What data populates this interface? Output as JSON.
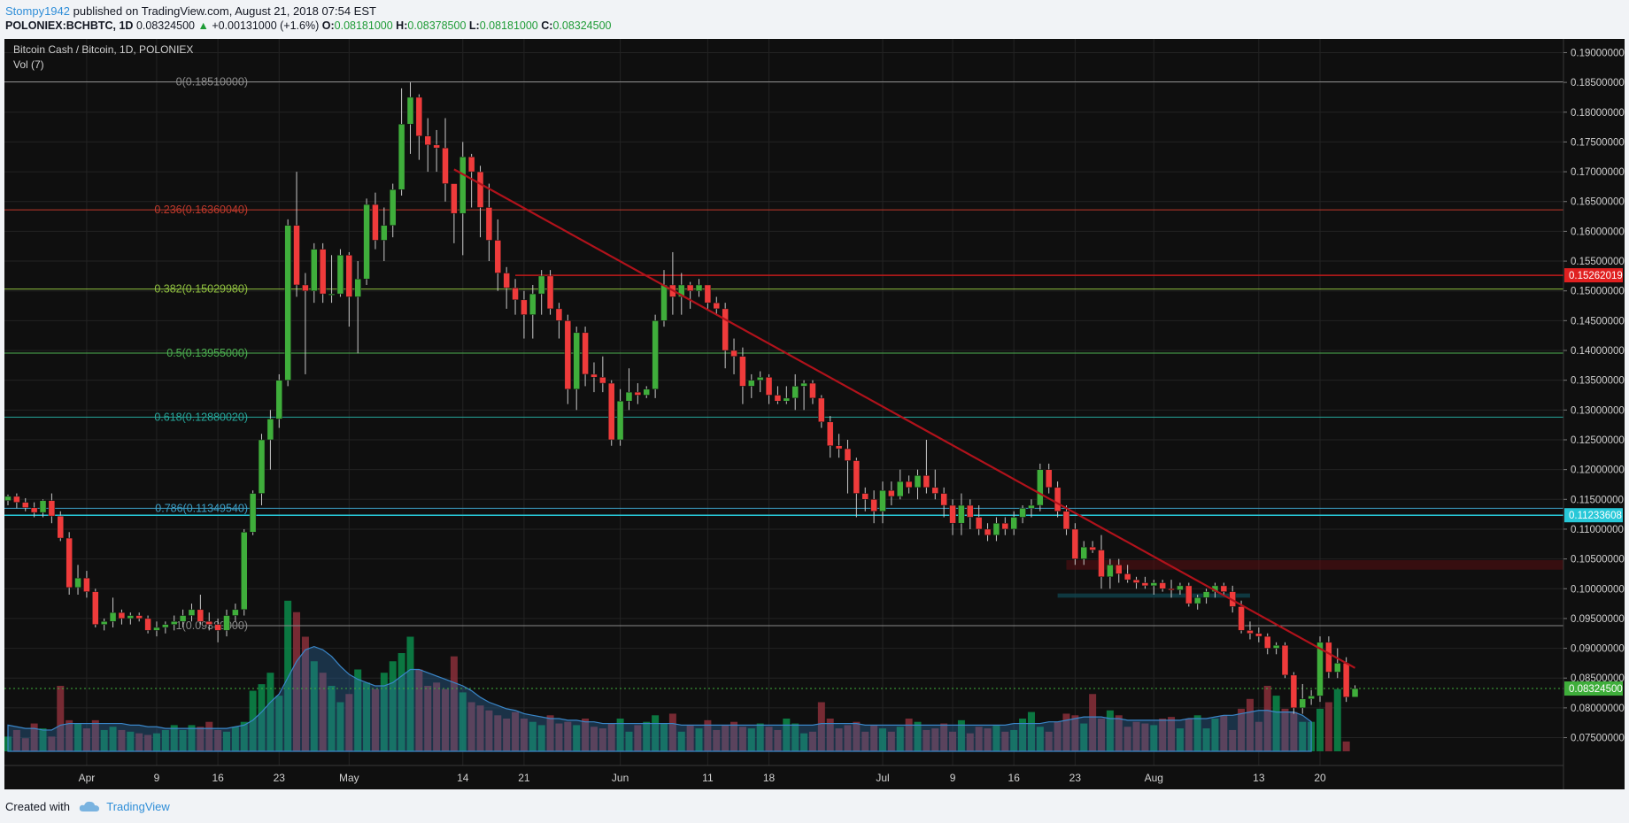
{
  "header": {
    "author": "Stompy1942",
    "published": " published on TradingView.com, August 21, 2018 07:54 EST",
    "symbol": "POLONIEX:BCHBTC, 1D",
    "last": "0.08324500",
    "change": "+0.00131000 (+1.6%)",
    "o_label": "O:",
    "o": "0.08181000",
    "h_label": "H:",
    "h": "0.08378500",
    "l_label": "L:",
    "l": "0.08181000",
    "c_label": "C:",
    "c": "0.08324500"
  },
  "legend": {
    "title": "Bitcoin Cash / Bitcoin, 1D, POLONIEX",
    "indicator": "Vol (7)"
  },
  "footer": {
    "created": "Created with",
    "brand": "TradingView"
  },
  "colors": {
    "up": "#3fae3b",
    "down": "#ef3b3b",
    "trend": "#b0121b",
    "background": "#0f0f0f",
    "volume_ma": "#2e6da4"
  },
  "chart_data": {
    "type": "candlestick",
    "title": "Bitcoin Cash / Bitcoin, 1D, POLONIEX",
    "ylim": [
      0.073,
      0.192
    ],
    "y_ticks": [
      "0.19000000",
      "0.18500000",
      "0.18000000",
      "0.17500000",
      "0.17000000",
      "0.16500000",
      "0.16000000",
      "0.15500000",
      "0.15000000",
      "0.14500000",
      "0.14000000",
      "0.13500000",
      "0.13000000",
      "0.12500000",
      "0.12000000",
      "0.11500000",
      "0.11000000",
      "0.10500000",
      "0.10000000",
      "0.09500000",
      "0.09000000",
      "0.08500000",
      "0.08000000",
      "0.07500000"
    ],
    "x_ticks": [
      {
        "label": "Apr",
        "day": 9
      },
      {
        "label": "9",
        "day": 17
      },
      {
        "label": "16",
        "day": 24
      },
      {
        "label": "23",
        "day": 31
      },
      {
        "label": "May",
        "day": 39
      },
      {
        "label": "14",
        "day": 52
      },
      {
        "label": "21",
        "day": 59
      },
      {
        "label": "Jun",
        "day": 70
      },
      {
        "label": "11",
        "day": 80
      },
      {
        "label": "18",
        "day": 87
      },
      {
        "label": "Jul",
        "day": 100
      },
      {
        "label": "9",
        "day": 108
      },
      {
        "label": "16",
        "day": 115
      },
      {
        "label": "23",
        "day": 122
      },
      {
        "label": "Aug",
        "day": 131
      },
      {
        "label": "13",
        "day": 143
      },
      {
        "label": "20",
        "day": 150
      }
    ],
    "fib_levels": [
      {
        "label": "0(0.18510000)",
        "value": 0.1851,
        "color": "#8a8a8a"
      },
      {
        "label": "0.236(0.16360040)",
        "value": 0.1636,
        "color": "#c0392b"
      },
      {
        "label": "0.382(0.15029980)",
        "value": 0.1503,
        "color": "#8fbf3f"
      },
      {
        "label": "0.5(0.13955000)",
        "value": 0.13955,
        "color": "#4caf50"
      },
      {
        "label": "0.618(0.12880020)",
        "value": 0.1288,
        "color": "#26a69a"
      },
      {
        "label": "0.786(0.11349540)",
        "value": 0.1135,
        "color": "#3ca0c8"
      },
      {
        "label": "1(0.09380000)",
        "value": 0.0938,
        "color": "#8a8a8a"
      }
    ],
    "price_markers": [
      {
        "label": "0.15262019",
        "value": 0.15262,
        "color": "#e02020"
      },
      {
        "label": "0.11233608",
        "value": 0.11234,
        "color": "#28c8d8"
      },
      {
        "label": "0.08324500",
        "value": 0.083245,
        "color": "#3fae3b"
      }
    ],
    "trendline": {
      "start_day": 51,
      "start_value": 0.1704,
      "end_day": 154,
      "end_value": 0.0867
    },
    "resistance": {
      "start_day": 58,
      "value": 0.15262
    },
    "support": {
      "start_day": 0,
      "value": 0.11234
    },
    "candles": [
      [
        0.1148,
        0.1158,
        0.114,
        0.1155
      ],
      [
        0.1155,
        0.116,
        0.1135,
        0.1145
      ],
      [
        0.1145,
        0.1152,
        0.113,
        0.1136
      ],
      [
        0.1136,
        0.1145,
        0.112,
        0.1128
      ],
      [
        0.1128,
        0.115,
        0.112,
        0.1148
      ],
      [
        0.1148,
        0.116,
        0.111,
        0.1122
      ],
      [
        0.1122,
        0.113,
        0.108,
        0.1085
      ],
      [
        0.1085,
        0.1095,
        0.099,
        0.1002
      ],
      [
        0.1002,
        0.104,
        0.099,
        0.1018
      ],
      [
        0.1018,
        0.103,
        0.0985,
        0.0995
      ],
      [
        0.0995,
        0.1,
        0.0935,
        0.094
      ],
      [
        0.094,
        0.095,
        0.093,
        0.0945
      ],
      [
        0.0945,
        0.0985,
        0.0935,
        0.096
      ],
      [
        0.096,
        0.0965,
        0.094,
        0.095
      ],
      [
        0.095,
        0.096,
        0.094,
        0.0955
      ],
      [
        0.0955,
        0.096,
        0.0945,
        0.095
      ],
      [
        0.095,
        0.0955,
        0.0925,
        0.093
      ],
      [
        0.093,
        0.0945,
        0.092,
        0.0935
      ],
      [
        0.0935,
        0.0945,
        0.0925,
        0.094
      ],
      [
        0.094,
        0.0955,
        0.093,
        0.0945
      ],
      [
        0.0945,
        0.0965,
        0.0935,
        0.0955
      ],
      [
        0.0955,
        0.0975,
        0.0945,
        0.0965
      ],
      [
        0.0965,
        0.099,
        0.094,
        0.0945
      ],
      [
        0.0945,
        0.096,
        0.093,
        0.094
      ],
      [
        0.094,
        0.095,
        0.091,
        0.093
      ],
      [
        0.093,
        0.0965,
        0.092,
        0.0955
      ],
      [
        0.0955,
        0.0975,
        0.0945,
        0.0965
      ],
      [
        0.0965,
        0.11,
        0.0955,
        0.1095
      ],
      [
        0.1095,
        0.1165,
        0.109,
        0.116
      ],
      [
        0.116,
        0.126,
        0.114,
        0.125
      ],
      [
        0.125,
        0.13,
        0.12,
        0.1285
      ],
      [
        0.1285,
        0.136,
        0.127,
        0.135
      ],
      [
        0.135,
        0.162,
        0.134,
        0.161
      ],
      [
        0.161,
        0.17,
        0.149,
        0.151
      ],
      [
        0.151,
        0.153,
        0.136,
        0.15
      ],
      [
        0.15,
        0.158,
        0.148,
        0.157
      ],
      [
        0.157,
        0.158,
        0.148,
        0.1495
      ],
      [
        0.1495,
        0.156,
        0.148,
        0.1495
      ],
      [
        0.1495,
        0.157,
        0.149,
        0.156
      ],
      [
        0.156,
        0.1565,
        0.144,
        0.149
      ],
      [
        0.149,
        0.155,
        0.1395,
        0.152
      ],
      [
        0.152,
        0.1655,
        0.151,
        0.1645
      ],
      [
        0.1645,
        0.1665,
        0.157,
        0.1585
      ],
      [
        0.1585,
        0.164,
        0.155,
        0.161
      ],
      [
        0.161,
        0.168,
        0.159,
        0.167
      ],
      [
        0.167,
        0.184,
        0.166,
        0.178
      ],
      [
        0.178,
        0.185,
        0.173,
        0.1825
      ],
      [
        0.1825,
        0.183,
        0.172,
        0.176
      ],
      [
        0.176,
        0.179,
        0.17,
        0.1745
      ],
      [
        0.1745,
        0.177,
        0.17,
        0.174
      ],
      [
        0.174,
        0.179,
        0.165,
        0.168
      ],
      [
        0.168,
        0.168,
        0.158,
        0.163
      ],
      [
        0.163,
        0.175,
        0.156,
        0.1725
      ],
      [
        0.1725,
        0.173,
        0.164,
        0.17
      ],
      [
        0.17,
        0.171,
        0.159,
        0.164
      ],
      [
        0.164,
        0.168,
        0.155,
        0.1585
      ],
      [
        0.1585,
        0.162,
        0.15,
        0.153
      ],
      [
        0.153,
        0.154,
        0.147,
        0.1505
      ],
      [
        0.1505,
        0.152,
        0.146,
        0.1485
      ],
      [
        0.1485,
        0.15,
        0.142,
        0.146
      ],
      [
        0.146,
        0.151,
        0.142,
        0.1495
      ],
      [
        0.1495,
        0.1535,
        0.146,
        0.1525
      ],
      [
        0.1525,
        0.1535,
        0.146,
        0.147
      ],
      [
        0.147,
        0.148,
        0.142,
        0.145
      ],
      [
        0.145,
        0.146,
        0.131,
        0.1335
      ],
      [
        0.1335,
        0.144,
        0.13,
        0.143
      ],
      [
        0.143,
        0.144,
        0.134,
        0.136
      ],
      [
        0.136,
        0.138,
        0.133,
        0.1355
      ],
      [
        0.1355,
        0.139,
        0.133,
        0.1345
      ],
      [
        0.1345,
        0.135,
        0.124,
        0.125
      ],
      [
        0.125,
        0.1335,
        0.124,
        0.1315
      ],
      [
        0.1315,
        0.137,
        0.13,
        0.133
      ],
      [
        0.133,
        0.1345,
        0.131,
        0.1325
      ],
      [
        0.1325,
        0.134,
        0.132,
        0.1335
      ],
      [
        0.1335,
        0.146,
        0.132,
        0.145
      ],
      [
        0.145,
        0.1535,
        0.144,
        0.151
      ],
      [
        0.151,
        0.1565,
        0.146,
        0.149
      ],
      [
        0.149,
        0.153,
        0.146,
        0.151
      ],
      [
        0.151,
        0.1515,
        0.147,
        0.15
      ],
      [
        0.15,
        0.152,
        0.149,
        0.151
      ],
      [
        0.151,
        0.151,
        0.147,
        0.148
      ],
      [
        0.148,
        0.149,
        0.146,
        0.147
      ],
      [
        0.147,
        0.148,
        0.137,
        0.14
      ],
      [
        0.14,
        0.142,
        0.136,
        0.139
      ],
      [
        0.139,
        0.1405,
        0.131,
        0.134
      ],
      [
        0.134,
        0.136,
        0.132,
        0.135
      ],
      [
        0.135,
        0.1365,
        0.133,
        0.1355
      ],
      [
        0.1355,
        0.136,
        0.131,
        0.1325
      ],
      [
        0.1325,
        0.134,
        0.131,
        0.1315
      ],
      [
        0.1315,
        0.134,
        0.131,
        0.132
      ],
      [
        0.132,
        0.136,
        0.13,
        0.134
      ],
      [
        0.134,
        0.135,
        0.13,
        0.1345
      ],
      [
        0.1345,
        0.135,
        0.131,
        0.132
      ],
      [
        0.132,
        0.1325,
        0.127,
        0.128
      ],
      [
        0.128,
        0.129,
        0.122,
        0.124
      ],
      [
        0.124,
        0.126,
        0.122,
        0.1235
      ],
      [
        0.1235,
        0.125,
        0.116,
        0.1215
      ],
      [
        0.1215,
        0.122,
        0.112,
        0.116
      ],
      [
        0.116,
        0.117,
        0.113,
        0.115
      ],
      [
        0.115,
        0.1165,
        0.111,
        0.113
      ],
      [
        0.113,
        0.118,
        0.111,
        0.1165
      ],
      [
        0.1165,
        0.118,
        0.114,
        0.1155
      ],
      [
        0.1155,
        0.12,
        0.115,
        0.118
      ],
      [
        0.118,
        0.119,
        0.116,
        0.117
      ],
      [
        0.117,
        0.12,
        0.115,
        0.119
      ],
      [
        0.119,
        0.125,
        0.116,
        0.117
      ],
      [
        0.117,
        0.12,
        0.115,
        0.116
      ],
      [
        0.116,
        0.117,
        0.112,
        0.114
      ],
      [
        0.114,
        0.115,
        0.109,
        0.111
      ],
      [
        0.111,
        0.116,
        0.109,
        0.114
      ],
      [
        0.114,
        0.115,
        0.11,
        0.112
      ],
      [
        0.112,
        0.114,
        0.109,
        0.11
      ],
      [
        0.11,
        0.111,
        0.108,
        0.109
      ],
      [
        0.109,
        0.112,
        0.108,
        0.111
      ],
      [
        0.111,
        0.112,
        0.109,
        0.11
      ],
      [
        0.11,
        0.113,
        0.109,
        0.112
      ],
      [
        0.112,
        0.114,
        0.111,
        0.1135
      ],
      [
        0.1135,
        0.115,
        0.112,
        0.114
      ],
      [
        0.114,
        0.121,
        0.113,
        0.12
      ],
      [
        0.12,
        0.121,
        0.116,
        0.117
      ],
      [
        0.117,
        0.118,
        0.112,
        0.113
      ],
      [
        0.113,
        0.114,
        0.109,
        0.11
      ],
      [
        0.11,
        0.111,
        0.104,
        0.105
      ],
      [
        0.105,
        0.108,
        0.104,
        0.107
      ],
      [
        0.107,
        0.108,
        0.106,
        0.1065
      ],
      [
        0.1065,
        0.109,
        0.1,
        0.102
      ],
      [
        0.102,
        0.105,
        0.1,
        0.104
      ],
      [
        0.104,
        0.105,
        0.101,
        0.1025
      ],
      [
        0.1025,
        0.104,
        0.101,
        0.1015
      ],
      [
        0.1015,
        0.102,
        0.1,
        0.101
      ],
      [
        0.101,
        0.102,
        0.1,
        0.1005
      ],
      [
        0.1005,
        0.1015,
        0.099,
        0.101
      ],
      [
        0.101,
        0.1015,
        0.0995,
        0.1
      ],
      [
        0.1,
        0.1015,
        0.0985,
        0.0998
      ],
      [
        0.0998,
        0.101,
        0.099,
        0.1005
      ],
      [
        0.1005,
        0.101,
        0.097,
        0.0975
      ],
      [
        0.0975,
        0.099,
        0.0965,
        0.0985
      ],
      [
        0.0985,
        0.1,
        0.0975,
        0.0995
      ],
      [
        0.0995,
        0.101,
        0.0985,
        0.1005
      ],
      [
        0.1005,
        0.101,
        0.099,
        0.0995
      ],
      [
        0.0995,
        0.1005,
        0.096,
        0.097
      ],
      [
        0.097,
        0.098,
        0.0925,
        0.093
      ],
      [
        0.093,
        0.0945,
        0.0915,
        0.0925
      ],
      [
        0.0925,
        0.0935,
        0.091,
        0.092
      ],
      [
        0.092,
        0.0925,
        0.089,
        0.09
      ],
      [
        0.09,
        0.091,
        0.089,
        0.0905
      ],
      [
        0.0905,
        0.091,
        0.085,
        0.0855
      ],
      [
        0.0855,
        0.086,
        0.079,
        0.08
      ],
      [
        0.08,
        0.084,
        0.079,
        0.0815
      ],
      [
        0.0815,
        0.083,
        0.0805,
        0.082
      ],
      [
        0.082,
        0.092,
        0.081,
        0.091
      ],
      [
        0.091,
        0.092,
        0.085,
        0.086
      ],
      [
        0.086,
        0.09,
        0.085,
        0.0875
      ],
      [
        0.0875,
        0.0885,
        0.081,
        0.0818
      ],
      [
        0.08181,
        0.083785,
        0.08181,
        0.083245
      ]
    ],
    "volume": [
      9,
      13,
      8,
      17,
      14,
      9,
      40,
      19,
      17,
      14,
      19,
      13,
      15,
      13,
      12,
      11,
      10,
      11,
      13,
      16,
      13,
      16,
      15,
      18,
      13,
      12,
      15,
      18,
      37,
      41,
      48,
      34,
      92,
      85,
      70,
      55,
      48,
      40,
      30,
      35,
      50,
      42,
      38,
      48,
      55,
      60,
      70,
      50,
      40,
      42,
      38,
      58,
      36,
      30,
      28,
      25,
      22,
      20,
      24,
      20,
      18,
      16,
      22,
      17,
      18,
      16,
      20,
      15,
      14,
      17,
      20,
      12,
      16,
      18,
      22,
      17,
      23,
      12,
      16,
      14,
      19,
      13,
      16,
      18,
      15,
      14,
      17,
      15,
      13,
      20,
      17,
      11,
      12,
      30,
      20,
      14,
      16,
      18,
      12,
      16,
      14,
      12,
      15,
      20,
      18,
      13,
      14,
      17,
      12,
      19,
      11,
      15,
      14,
      16,
      12,
      13,
      20,
      24,
      15,
      12,
      18,
      23,
      22,
      17,
      35,
      20,
      25,
      22,
      15,
      18,
      17,
      16,
      20,
      21,
      14,
      20,
      22,
      14,
      20,
      22,
      13,
      26,
      32,
      18,
      40,
      34,
      26,
      24,
      18,
      18,
      26,
      30,
      38,
      6
    ],
    "volume_ma": [
      16,
      15,
      14,
      14,
      13,
      13,
      16,
      17,
      17,
      17,
      17,
      17,
      17,
      17,
      16,
      16,
      15,
      15,
      14,
      14,
      14,
      14,
      14,
      14,
      14,
      14,
      15,
      16,
      19,
      24,
      30,
      35,
      45,
      55,
      62,
      64,
      62,
      58,
      52,
      47,
      44,
      42,
      40,
      40,
      42,
      46,
      50,
      50,
      48,
      46,
      44,
      42,
      40,
      37,
      33,
      30,
      28,
      26,
      25,
      23,
      22,
      21,
      20,
      20,
      19,
      19,
      18,
      18,
      17,
      17,
      17,
      17,
      17,
      17,
      17,
      17,
      17,
      16,
      16,
      16,
      16,
      16,
      16,
      16,
      16,
      16,
      16,
      16,
      16,
      16,
      16,
      16,
      16,
      17,
      17,
      17,
      17,
      17,
      16,
      16,
      16,
      16,
      16,
      16,
      16,
      16,
      16,
      16,
      16,
      16,
      16,
      16,
      16,
      16,
      16,
      17,
      17,
      17,
      17,
      18,
      18,
      19,
      20,
      21,
      21,
      21,
      20,
      20,
      19,
      19,
      19,
      19,
      19,
      19,
      19,
      20,
      20,
      20,
      21,
      22,
      22,
      23,
      24,
      25,
      25,
      24,
      24,
      24,
      22,
      18
    ]
  }
}
